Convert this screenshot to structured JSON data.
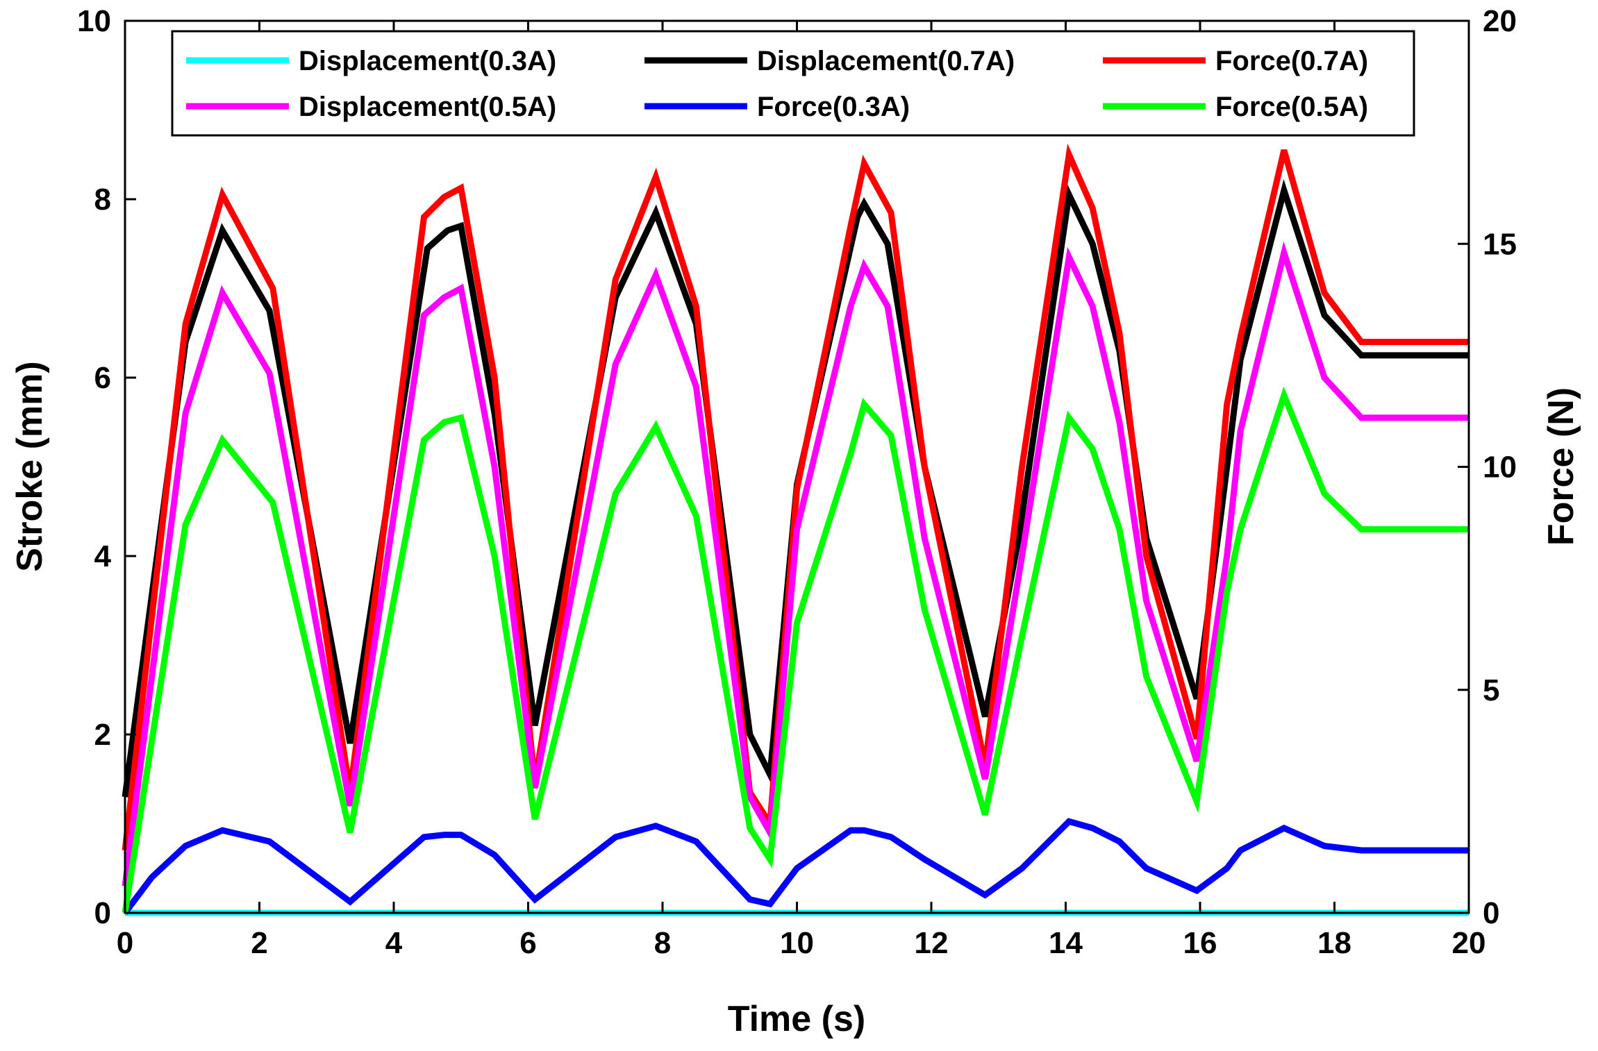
{
  "chart_data": {
    "type": "line",
    "xlabel": "Time (s)",
    "ylabel_left": "Stroke (mm)",
    "ylabel_right": "Force (N)",
    "xlim": [
      0,
      20
    ],
    "ylim_left": [
      0,
      10
    ],
    "ylim_right": [
      0,
      20
    ],
    "x_ticks": [
      0,
      2,
      4,
      6,
      8,
      10,
      12,
      14,
      16,
      18,
      20
    ],
    "y_left_ticks": [
      0,
      2,
      4,
      6,
      8,
      10
    ],
    "y_right_ticks": [
      0,
      5,
      10,
      15,
      20
    ],
    "grid": false,
    "legend_position": "top",
    "series": [
      {
        "name": "Displacement(0.3A)",
        "axis": "left",
        "color": "#00ffff",
        "x": [
          0,
          20
        ],
        "y": [
          0.0,
          0.0
        ]
      },
      {
        "name": "Displacement(0.7A)",
        "axis": "left",
        "color": "#000000",
        "x": [
          0,
          0.9,
          1.45,
          2.15,
          3.35,
          4.5,
          4.8,
          5.0,
          5.5,
          6.1,
          7.3,
          7.9,
          8.5,
          9.3,
          9.6,
          10.0,
          10.9,
          11.0,
          11.35,
          11.9,
          12.8,
          13.3,
          14.05,
          14.4,
          14.8,
          15.2,
          15.95,
          16.3,
          16.6,
          17.25,
          17.85,
          18.4,
          20
        ],
        "y": [
          1.3,
          6.4,
          7.65,
          6.75,
          1.9,
          7.45,
          7.65,
          7.7,
          5.6,
          2.1,
          6.9,
          7.85,
          6.6,
          2.0,
          1.55,
          4.8,
          7.8,
          7.95,
          7.5,
          5.0,
          2.2,
          4.2,
          8.05,
          7.5,
          6.3,
          4.2,
          2.4,
          4.4,
          6.2,
          8.1,
          6.7,
          6.25,
          6.25
        ]
      },
      {
        "name": "Force(0.7A)",
        "axis": "right",
        "color": "#ff0000",
        "x": [
          0,
          0.9,
          1.45,
          2.2,
          3.35,
          4.45,
          4.75,
          5.0,
          5.5,
          6.1,
          7.3,
          7.9,
          8.5,
          9.3,
          9.6,
          10.0,
          10.8,
          11.0,
          11.4,
          11.9,
          12.8,
          13.35,
          14.05,
          14.4,
          14.8,
          15.2,
          15.95,
          16.4,
          16.6,
          17.25,
          17.85,
          18.4,
          20
        ],
        "y": [
          1.4,
          13.2,
          16.1,
          14.0,
          2.7,
          15.6,
          16.05,
          16.25,
          12.0,
          2.9,
          14.2,
          16.5,
          13.6,
          2.7,
          2.0,
          9.5,
          15.4,
          16.8,
          15.7,
          10.0,
          3.3,
          10.0,
          17.0,
          15.8,
          13.0,
          8.0,
          3.9,
          11.4,
          12.9,
          17.1,
          13.9,
          12.8,
          12.8
        ]
      },
      {
        "name": "Displacement(0.5A)",
        "axis": "left",
        "color": "#ff00ff",
        "x": [
          0,
          0.9,
          1.45,
          2.15,
          3.35,
          4.45,
          4.75,
          5.0,
          5.5,
          6.1,
          7.3,
          7.9,
          8.5,
          9.3,
          9.6,
          10.0,
          10.8,
          11.0,
          11.35,
          11.9,
          12.8,
          13.35,
          14.05,
          14.4,
          14.8,
          15.2,
          15.95,
          16.4,
          16.6,
          17.25,
          17.85,
          18.4,
          20
        ],
        "y": [
          0.3,
          5.6,
          6.95,
          6.05,
          1.2,
          6.7,
          6.9,
          7.0,
          5.0,
          1.4,
          6.15,
          7.15,
          5.9,
          1.3,
          0.9,
          4.3,
          6.8,
          7.25,
          6.8,
          4.2,
          1.5,
          4.0,
          7.35,
          6.8,
          5.5,
          3.5,
          1.7,
          4.0,
          5.4,
          7.4,
          6.0,
          5.55,
          5.55
        ]
      },
      {
        "name": "Force(0.3A)",
        "axis": "right",
        "color": "#0000ff",
        "x": [
          0,
          0.4,
          0.9,
          1.45,
          2.15,
          3.35,
          4.45,
          4.75,
          5.0,
          5.5,
          6.1,
          7.3,
          7.9,
          8.5,
          9.3,
          9.6,
          10.0,
          10.8,
          11.0,
          11.4,
          11.9,
          12.8,
          13.35,
          14.05,
          14.4,
          14.8,
          15.2,
          15.95,
          16.4,
          16.6,
          17.25,
          17.85,
          18.4,
          20
        ],
        "y": [
          0.0,
          0.8,
          1.5,
          1.85,
          1.6,
          0.25,
          1.7,
          1.75,
          1.75,
          1.3,
          0.3,
          1.7,
          1.95,
          1.6,
          0.3,
          0.2,
          1.0,
          1.85,
          1.85,
          1.7,
          1.2,
          0.4,
          1.0,
          2.05,
          1.9,
          1.6,
          1.0,
          0.5,
          1.0,
          1.4,
          1.9,
          1.5,
          1.4,
          1.4
        ]
      },
      {
        "name": "Force(0.5A)",
        "axis": "right",
        "color": "#00ff00",
        "x": [
          0,
          0.9,
          1.45,
          2.2,
          3.35,
          4.45,
          4.75,
          5.0,
          5.5,
          6.1,
          7.3,
          7.9,
          8.5,
          9.3,
          9.6,
          10.0,
          10.8,
          11.0,
          11.4,
          11.9,
          12.8,
          13.35,
          14.05,
          14.4,
          14.8,
          15.2,
          15.95,
          16.4,
          16.6,
          17.25,
          17.85,
          18.4,
          20
        ],
        "y": [
          0.0,
          8.7,
          10.6,
          9.2,
          1.8,
          10.6,
          11.0,
          11.1,
          8.0,
          2.1,
          9.4,
          10.9,
          8.9,
          1.9,
          1.2,
          6.5,
          10.3,
          11.4,
          10.7,
          6.8,
          2.2,
          6.2,
          11.1,
          10.4,
          8.6,
          5.3,
          2.5,
          7.2,
          8.6,
          11.6,
          9.4,
          8.6,
          8.6
        ]
      }
    ]
  },
  "legend": {
    "rows": [
      [
        "Displacement(0.3A)",
        "Displacement(0.7A)",
        "Force(0.7A)"
      ],
      [
        "Displacement(0.5A)",
        "Force(0.3A)",
        "Force(0.5A)"
      ]
    ],
    "colors": [
      [
        "#00ffff",
        "#000000",
        "#ff0000"
      ],
      [
        "#ff00ff",
        "#0000ff",
        "#00ff00"
      ]
    ]
  }
}
